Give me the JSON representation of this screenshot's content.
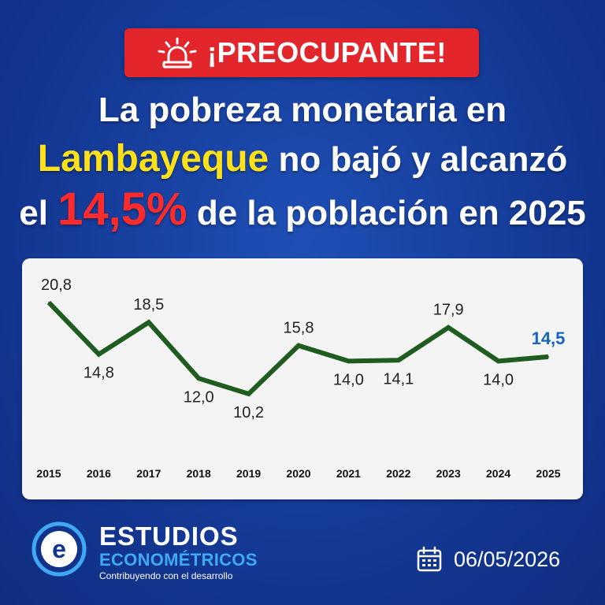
{
  "badge": {
    "text": "¡PREOCUPANTE!",
    "icon": "alarm-light-icon"
  },
  "headline": {
    "line1": "La pobreza monetaria en",
    "line2_highlight": "Lambayeque",
    "line2_rest": " no bajó y alcanzó",
    "line3_pre": "el ",
    "line3_highlight": "14,5%",
    "line3_post": " de la población en 2025"
  },
  "chart_data": {
    "type": "line",
    "categories": [
      "2015",
      "2016",
      "2017",
      "2018",
      "2019",
      "2020",
      "2021",
      "2022",
      "2023",
      "2024",
      "2025"
    ],
    "values": [
      20.8,
      14.8,
      18.5,
      12.0,
      10.2,
      15.8,
      14.0,
      14.1,
      17.9,
      14.0,
      14.5
    ],
    "labels": [
      "20,8",
      "14,8",
      "18,5",
      "12,0",
      "10,2",
      "15,8",
      "14,0",
      "14,1",
      "17,9",
      "14,0",
      "14,5"
    ],
    "label_pos": [
      "above",
      "below",
      "above",
      "below",
      "below",
      "above",
      "below",
      "below",
      "above",
      "below",
      "above"
    ],
    "highlight_index": 10,
    "ylim": [
      10.2,
      20.8
    ],
    "grid": false,
    "line_color": "#1f5c1f",
    "label_color": "#222222",
    "highlight_color": "#1565c0",
    "title": "",
    "xlabel": "",
    "ylabel": ""
  },
  "footer": {
    "brand_line1": "ESTUDIOS",
    "brand_line2": "ECONOMÉTRICOS",
    "tagline": "Contribuyendo con el desarrollo",
    "date": "06/05/2026",
    "date_icon": "calendar-icon",
    "logo_icon": "estudios-econometricos-logo-icon"
  },
  "colors": {
    "accent_red": "#e3252c",
    "accent_yellow": "#ffe11a",
    "brand_blue": "#3fa9f5",
    "background": "#12358f"
  }
}
